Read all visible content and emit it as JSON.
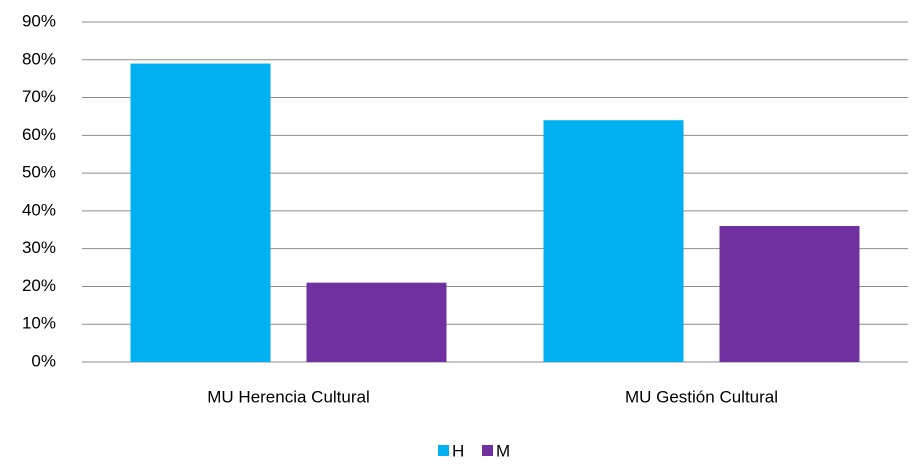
{
  "chart_data": {
    "type": "bar",
    "categories": [
      "MU Herencia Cultural",
      "MU Gestión Cultural"
    ],
    "series": [
      {
        "name": "H",
        "color": "#00b0f0",
        "values": [
          79,
          64
        ]
      },
      {
        "name": "M",
        "color": "#7030a0",
        "values": [
          21,
          36
        ]
      }
    ],
    "ylim": [
      0,
      90
    ],
    "yticks": [
      {
        "value": 0,
        "label": "0%"
      },
      {
        "value": 10,
        "label": "10%"
      },
      {
        "value": 20,
        "label": "20%"
      },
      {
        "value": 30,
        "label": "30%"
      },
      {
        "value": 40,
        "label": "40%"
      },
      {
        "value": 50,
        "label": "50%"
      },
      {
        "value": 60,
        "label": "60%"
      },
      {
        "value": 70,
        "label": "70%"
      },
      {
        "value": 80,
        "label": "80%"
      },
      {
        "value": 90,
        "label": "90%"
      }
    ],
    "grid": true,
    "legend": "bottom"
  }
}
